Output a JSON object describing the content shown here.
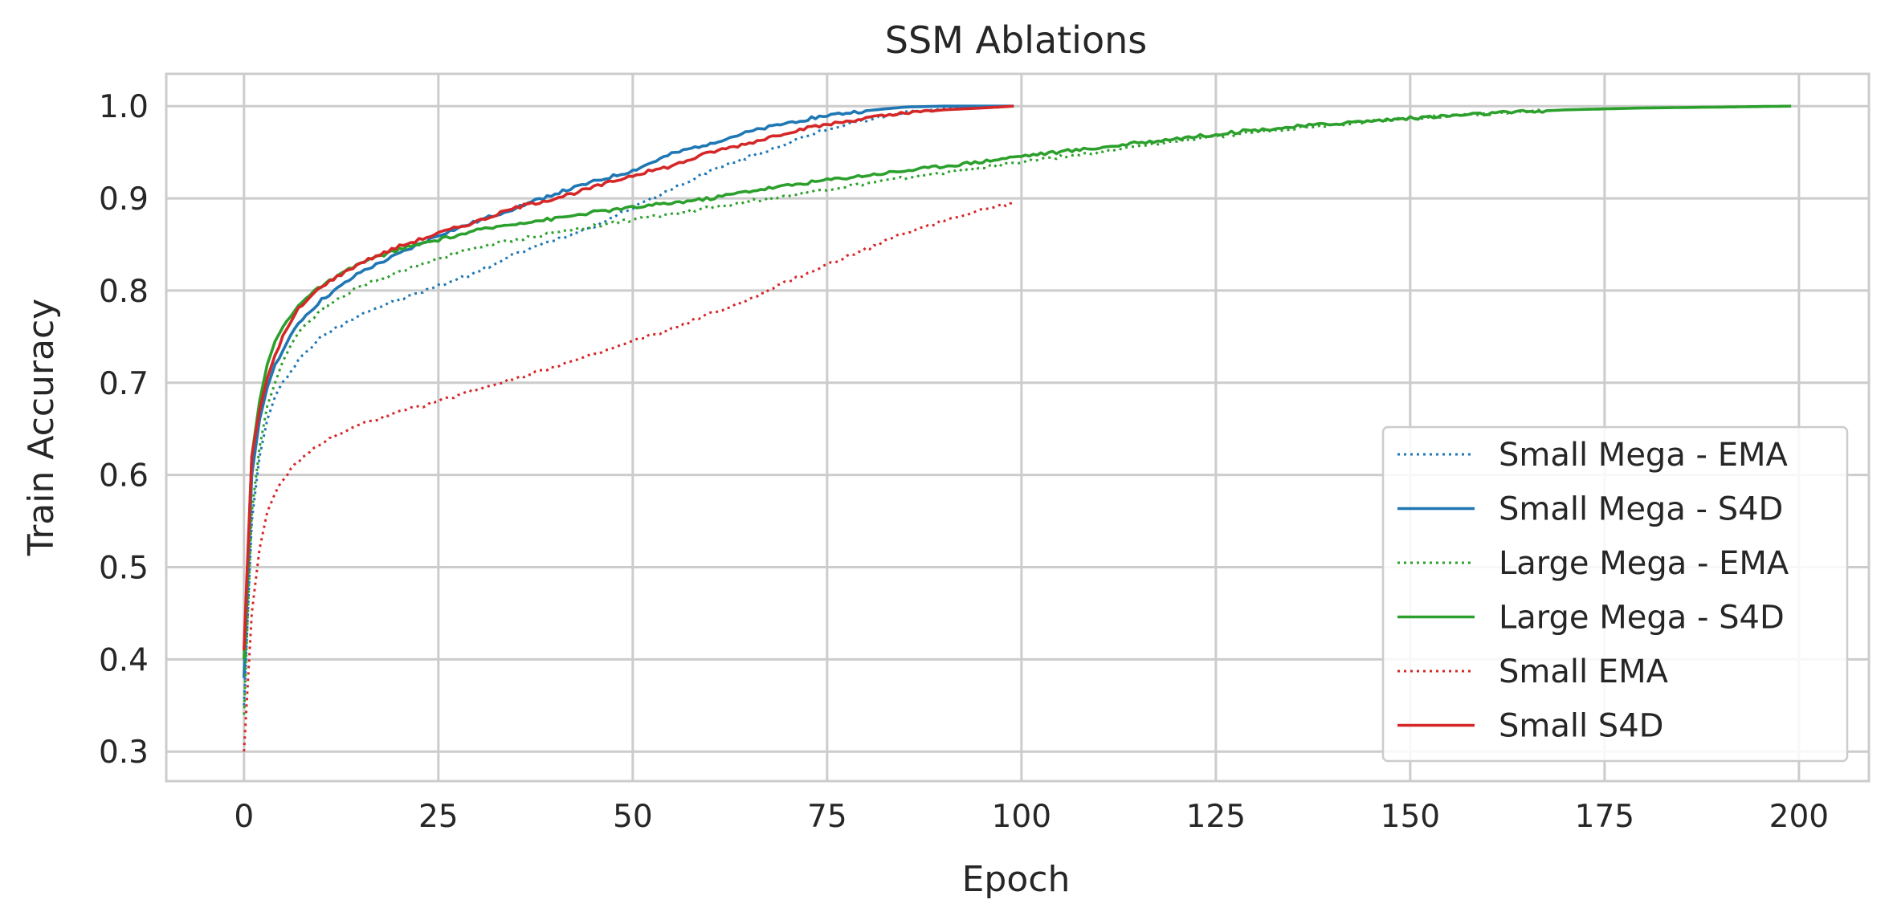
{
  "chart_data": {
    "type": "line",
    "title": "SSM Ablations",
    "xlabel": "Epoch",
    "ylabel": "Train Accuracy",
    "xlim": [
      -10,
      209
    ],
    "ylim": [
      0.268,
      1.035
    ],
    "x_ticks": [
      0,
      25,
      50,
      75,
      100,
      125,
      150,
      175,
      200
    ],
    "x_tick_labels": [
      "0",
      "25",
      "50",
      "75",
      "100",
      "125",
      "150",
      "175",
      "200"
    ],
    "y_ticks": [
      0.3,
      0.4,
      0.5,
      0.6,
      0.7,
      0.8,
      0.9,
      1.0
    ],
    "y_tick_labels": [
      "0.3",
      "0.4",
      "0.5",
      "0.6",
      "0.7",
      "0.8",
      "0.9",
      "1.0"
    ],
    "grid": true,
    "legend_position": "lower-right",
    "series": [
      {
        "name": "Small Mega - EMA",
        "color": "#1f77b4",
        "style": "dotted",
        "points": [
          [
            0,
            0.35
          ],
          [
            1,
            0.55
          ],
          [
            2,
            0.62
          ],
          [
            3,
            0.66
          ],
          [
            4,
            0.685
          ],
          [
            5,
            0.7
          ],
          [
            7,
            0.725
          ],
          [
            10,
            0.75
          ],
          [
            15,
            0.775
          ],
          [
            20,
            0.79
          ],
          [
            25,
            0.805
          ],
          [
            30,
            0.82
          ],
          [
            35,
            0.84
          ],
          [
            40,
            0.855
          ],
          [
            45,
            0.87
          ],
          [
            50,
            0.89
          ],
          [
            55,
            0.91
          ],
          [
            60,
            0.93
          ],
          [
            65,
            0.945
          ],
          [
            70,
            0.96
          ],
          [
            75,
            0.975
          ],
          [
            80,
            0.985
          ],
          [
            85,
            0.993
          ],
          [
            90,
            0.997
          ],
          [
            95,
            0.999
          ],
          [
            99,
            1.0
          ]
        ]
      },
      {
        "name": "Small Mega - S4D",
        "color": "#1f77b4",
        "style": "solid",
        "points": [
          [
            0,
            0.38
          ],
          [
            1,
            0.6
          ],
          [
            2,
            0.66
          ],
          [
            3,
            0.695
          ],
          [
            4,
            0.72
          ],
          [
            5,
            0.735
          ],
          [
            7,
            0.765
          ],
          [
            10,
            0.79
          ],
          [
            15,
            0.82
          ],
          [
            20,
            0.84
          ],
          [
            25,
            0.86
          ],
          [
            30,
            0.875
          ],
          [
            35,
            0.89
          ],
          [
            40,
            0.905
          ],
          [
            45,
            0.918
          ],
          [
            50,
            0.93
          ],
          [
            55,
            0.948
          ],
          [
            60,
            0.96
          ],
          [
            65,
            0.972
          ],
          [
            70,
            0.982
          ],
          [
            75,
            0.99
          ],
          [
            80,
            0.995
          ],
          [
            85,
            0.999
          ],
          [
            90,
            1.0
          ],
          [
            99,
            1.0
          ]
        ]
      },
      {
        "name": "Large Mega - EMA",
        "color": "#2ca02c",
        "style": "dotted",
        "points": [
          [
            0,
            0.34
          ],
          [
            1,
            0.56
          ],
          [
            2,
            0.63
          ],
          [
            3,
            0.675
          ],
          [
            4,
            0.7
          ],
          [
            5,
            0.725
          ],
          [
            7,
            0.755
          ],
          [
            10,
            0.78
          ],
          [
            15,
            0.805
          ],
          [
            20,
            0.82
          ],
          [
            25,
            0.835
          ],
          [
            30,
            0.847
          ],
          [
            35,
            0.855
          ],
          [
            40,
            0.863
          ],
          [
            45,
            0.87
          ],
          [
            50,
            0.877
          ],
          [
            55,
            0.883
          ],
          [
            60,
            0.89
          ],
          [
            65,
            0.897
          ],
          [
            70,
            0.903
          ],
          [
            75,
            0.91
          ],
          [
            80,
            0.916
          ],
          [
            85,
            0.922
          ],
          [
            90,
            0.928
          ],
          [
            95,
            0.933
          ],
          [
            100,
            0.94
          ],
          [
            110,
            0.95
          ],
          [
            120,
            0.962
          ],
          [
            130,
            0.972
          ],
          [
            140,
            0.98
          ],
          [
            150,
            0.987
          ],
          [
            160,
            0.992
          ],
          [
            170,
            0.996
          ],
          [
            180,
            0.998
          ],
          [
            190,
            0.999
          ],
          [
            199,
            1.0
          ]
        ]
      },
      {
        "name": "Large Mega - S4D",
        "color": "#2ca02c",
        "style": "solid",
        "points": [
          [
            0,
            0.4
          ],
          [
            1,
            0.62
          ],
          [
            2,
            0.68
          ],
          [
            3,
            0.72
          ],
          [
            4,
            0.745
          ],
          [
            5,
            0.76
          ],
          [
            7,
            0.785
          ],
          [
            10,
            0.805
          ],
          [
            15,
            0.83
          ],
          [
            20,
            0.845
          ],
          [
            25,
            0.855
          ],
          [
            30,
            0.865
          ],
          [
            35,
            0.873
          ],
          [
            40,
            0.878
          ],
          [
            45,
            0.885
          ],
          [
            50,
            0.89
          ],
          [
            55,
            0.895
          ],
          [
            60,
            0.9
          ],
          [
            65,
            0.908
          ],
          [
            70,
            0.914
          ],
          [
            75,
            0.92
          ],
          [
            80,
            0.925
          ],
          [
            85,
            0.93
          ],
          [
            90,
            0.935
          ],
          [
            95,
            0.94
          ],
          [
            100,
            0.946
          ],
          [
            110,
            0.955
          ],
          [
            120,
            0.965
          ],
          [
            130,
            0.974
          ],
          [
            140,
            0.981
          ],
          [
            150,
            0.987
          ],
          [
            160,
            0.992
          ],
          [
            170,
            0.996
          ],
          [
            180,
            0.998
          ],
          [
            190,
            0.999
          ],
          [
            199,
            1.0
          ]
        ]
      },
      {
        "name": "Small EMA",
        "color": "#d62728",
        "style": "dotted",
        "points": [
          [
            0,
            0.3
          ],
          [
            1,
            0.45
          ],
          [
            2,
            0.52
          ],
          [
            3,
            0.56
          ],
          [
            4,
            0.58
          ],
          [
            5,
            0.595
          ],
          [
            7,
            0.615
          ],
          [
            10,
            0.635
          ],
          [
            15,
            0.655
          ],
          [
            20,
            0.668
          ],
          [
            25,
            0.68
          ],
          [
            30,
            0.693
          ],
          [
            35,
            0.705
          ],
          [
            40,
            0.718
          ],
          [
            45,
            0.73
          ],
          [
            50,
            0.745
          ],
          [
            55,
            0.758
          ],
          [
            60,
            0.775
          ],
          [
            65,
            0.79
          ],
          [
            70,
            0.81
          ],
          [
            75,
            0.828
          ],
          [
            80,
            0.845
          ],
          [
            85,
            0.862
          ],
          [
            90,
            0.876
          ],
          [
            95,
            0.888
          ],
          [
            99,
            0.895
          ]
        ]
      },
      {
        "name": "Small S4D",
        "color": "#d62728",
        "style": "solid",
        "points": [
          [
            0,
            0.41
          ],
          [
            1,
            0.62
          ],
          [
            2,
            0.67
          ],
          [
            3,
            0.705
          ],
          [
            4,
            0.73
          ],
          [
            5,
            0.75
          ],
          [
            7,
            0.78
          ],
          [
            10,
            0.805
          ],
          [
            15,
            0.83
          ],
          [
            20,
            0.848
          ],
          [
            25,
            0.862
          ],
          [
            30,
            0.875
          ],
          [
            35,
            0.89
          ],
          [
            40,
            0.9
          ],
          [
            45,
            0.912
          ],
          [
            50,
            0.925
          ],
          [
            55,
            0.935
          ],
          [
            60,
            0.95
          ],
          [
            65,
            0.96
          ],
          [
            70,
            0.972
          ],
          [
            75,
            0.98
          ],
          [
            80,
            0.987
          ],
          [
            85,
            0.992
          ],
          [
            90,
            0.996
          ],
          [
            95,
            0.998
          ],
          [
            99,
            1.0
          ]
        ]
      }
    ]
  }
}
